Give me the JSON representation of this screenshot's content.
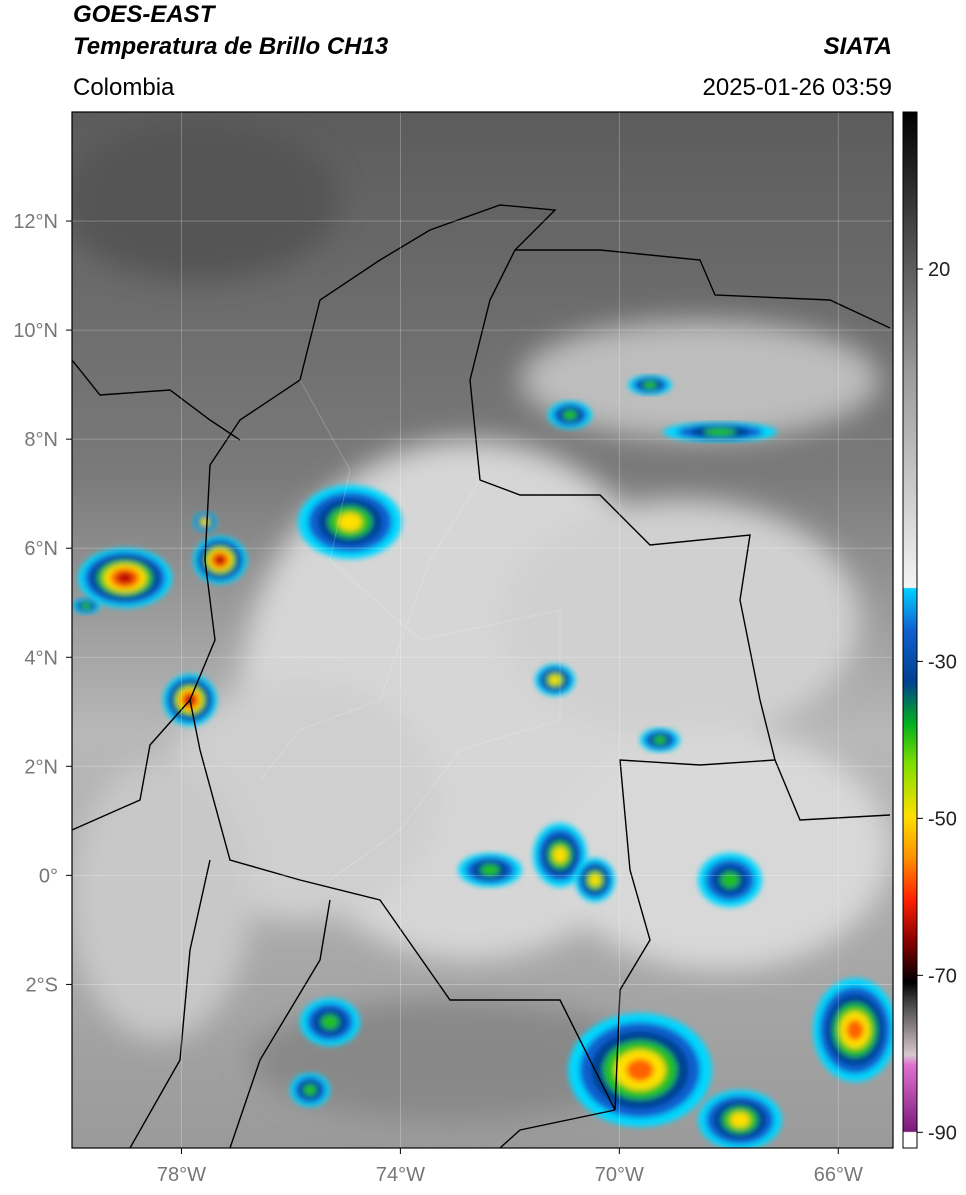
{
  "header": {
    "title": "GOES-EAST",
    "subtitle": "Temperatura de Brillo CH13",
    "region": "Colombia",
    "source": "SIATA",
    "datetime": "2025-01-26 03:59"
  },
  "map": {
    "lonlim": [
      -80,
      -65
    ],
    "latlim": [
      -5,
      14
    ],
    "lat_ticks": [
      {
        "value": 12,
        "label": "12°N"
      },
      {
        "value": 10,
        "label": "10°N"
      },
      {
        "value": 8,
        "label": "8°N"
      },
      {
        "value": 6,
        "label": "6°N"
      },
      {
        "value": 4,
        "label": "4°N"
      },
      {
        "value": 2,
        "label": "2°N"
      },
      {
        "value": 0,
        "label": "0°"
      },
      {
        "value": -2,
        "label": "2°S"
      }
    ],
    "lon_ticks": [
      {
        "value": -78,
        "label": "78°W"
      },
      {
        "value": -74,
        "label": "74°W"
      },
      {
        "value": -70,
        "label": "70°W"
      },
      {
        "value": -66,
        "label": "66°W"
      }
    ],
    "grid": true
  },
  "colorbar": {
    "lim": [
      -92,
      40
    ],
    "ticks": [
      20,
      -30,
      -50,
      -70,
      -90
    ]
  }
}
